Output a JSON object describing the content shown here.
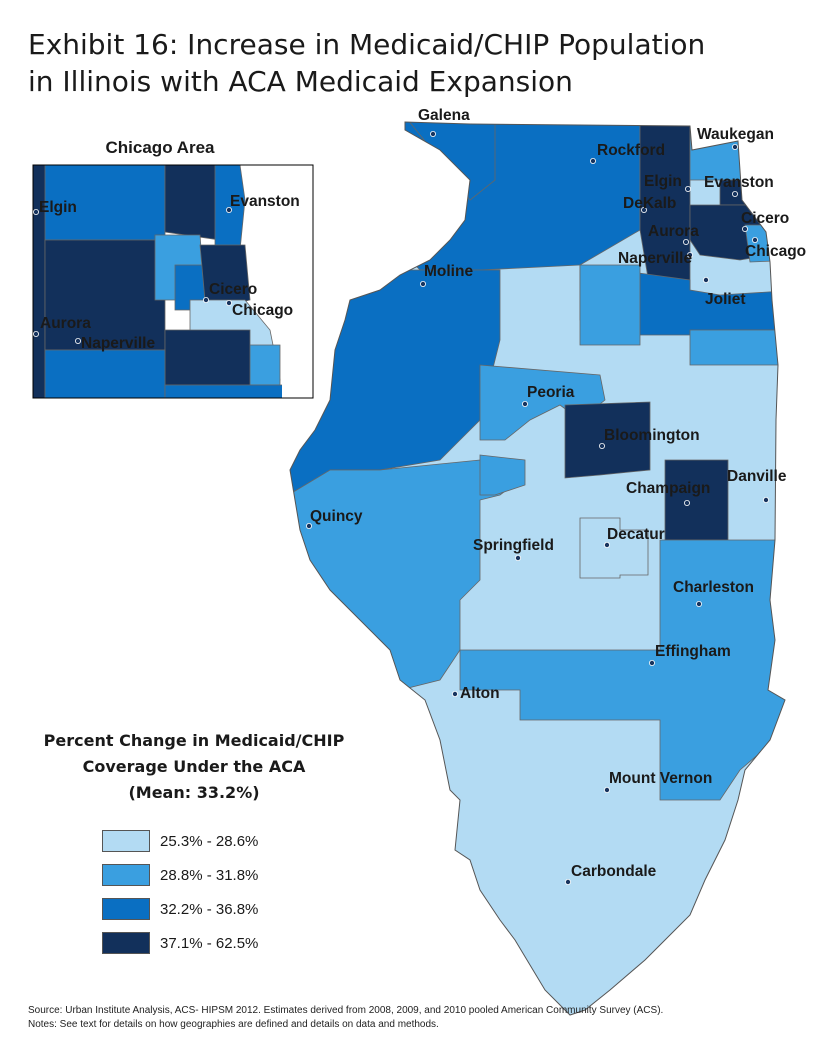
{
  "title": {
    "line1": "Exhibit 16: Increase in Medicaid/CHIP Population",
    "line2": "in Illinois with ACA Medicaid Expansion"
  },
  "colors": {
    "c1": "#b3dbf3",
    "c2": "#3a9fe0",
    "c3": "#0a6fc2",
    "c4": "#12305b",
    "border": "#666666",
    "dot": "#17345f"
  },
  "inset": {
    "title": "Chicago Area",
    "cities": [
      "Elgin",
      "Evanston",
      "Cicero",
      "Chicago",
      "Aurora",
      "Naperville"
    ]
  },
  "cities": [
    "Galena",
    "Rockford",
    "Waukegan",
    "Elgin",
    "Evanston",
    "DeKalb",
    "Cicero",
    "Aurora",
    "Chicago",
    "Naperville",
    "Joliet",
    "Moline",
    "Peoria",
    "Bloomington",
    "Champaign",
    "Danville",
    "Quincy",
    "Springfield",
    "Decatur",
    "Charleston",
    "Effingham",
    "Alton",
    "Mount Vernon",
    "Carbondale"
  ],
  "legend": {
    "title_line1": "Percent Change in Medicaid/CHIP",
    "title_line2": "Coverage Under the ACA",
    "title_line3": "(Mean: 33.2%)",
    "items": [
      {
        "label": "25.3% - 28.6%",
        "color": "#b3dbf3"
      },
      {
        "label": "28.8% - 31.8%",
        "color": "#3a9fe0"
      },
      {
        "label": "32.2% - 36.8%",
        "color": "#0a6fc2"
      },
      {
        "label": "37.1% - 62.5%",
        "color": "#12305b"
      }
    ]
  },
  "footer": {
    "source": "Source: Urban Institute Analysis, ACS- HIPSM 2012. Estimates derived from 2008, 2009, and 2010 pooled American Community Survey (ACS).",
    "notes": "Notes: See text for details on how geographies are defined and details on data and methods."
  }
}
